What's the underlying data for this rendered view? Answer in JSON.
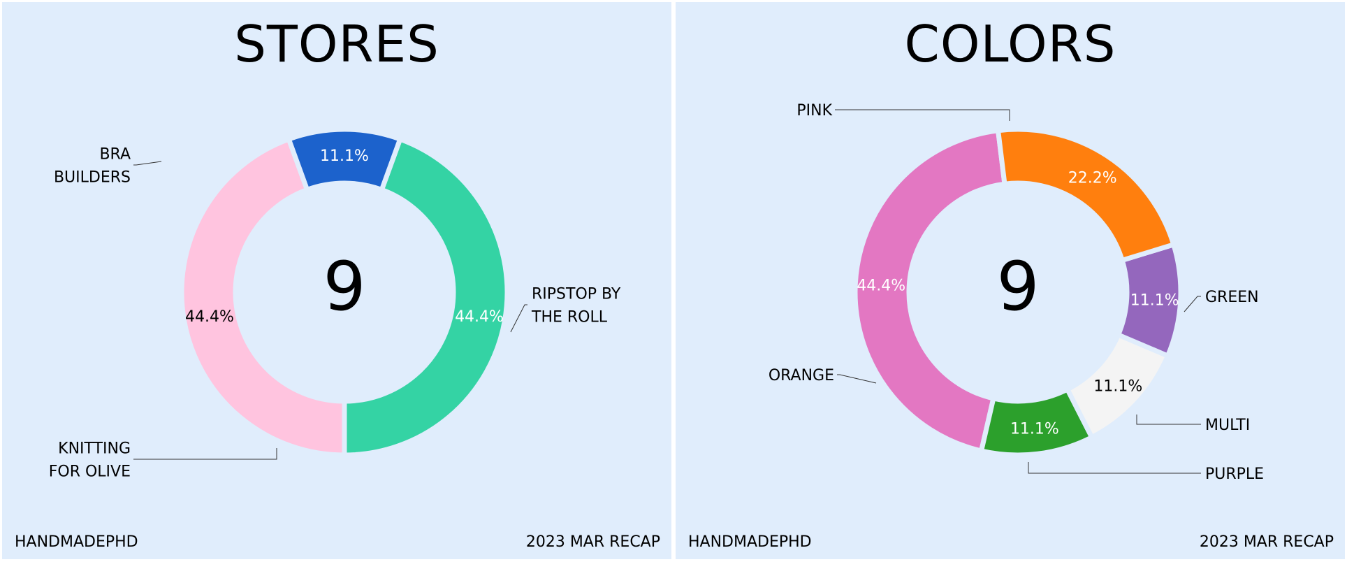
{
  "footer_left": "HANDMADEPHD",
  "footer_right": "2023 MAR RECAP",
  "chart_data": [
    {
      "type": "pie",
      "title": "STORES",
      "center_total": "9",
      "slices": [
        {
          "label": "BRA BUILDERS",
          "lines": [
            "BRA",
            "BUILDERS"
          ],
          "value": 4,
          "pct": "44.4%",
          "color": "#34d3a4",
          "pct_color": "#ffffff"
        },
        {
          "label": "RIPSTOP BY THE ROLL",
          "lines": [
            "RIPSTOP BY",
            "THE ROLL"
          ],
          "value": 4,
          "pct": "44.4%",
          "color": "#ffc4df",
          "pct_color": "#000000"
        },
        {
          "label": "KNITTING FOR OLIVE",
          "lines": [
            "KNITTING",
            "FOR OLIVE"
          ],
          "value": 1,
          "pct": "11.1%",
          "color": "#1c62cc",
          "pct_color": "#ffffff"
        }
      ]
    },
    {
      "type": "pie",
      "title": "COLORS",
      "center_total": "9",
      "slices": [
        {
          "label": "PINK",
          "lines": [
            "PINK"
          ],
          "value": 4,
          "pct": "44.4%",
          "color": "#e377c2",
          "pct_color": "#ffffff"
        },
        {
          "label": "GREEN",
          "lines": [
            "GREEN"
          ],
          "value": 1,
          "pct": "11.1%",
          "color": "#2ca02c",
          "pct_color": "#ffffff"
        },
        {
          "label": "MULTI",
          "lines": [
            "MULTI"
          ],
          "value": 1,
          "pct": "11.1%",
          "color": "#f4f4f4",
          "pct_color": "#000000"
        },
        {
          "label": "PURPLE",
          "lines": [
            "PURPLE"
          ],
          "value": 1,
          "pct": "11.1%",
          "color": "#9467bd",
          "pct_color": "#ffffff"
        },
        {
          "label": "ORANGE",
          "lines": [
            "ORANGE"
          ],
          "value": 2,
          "pct": "22.2%",
          "color": "#ff7f0e",
          "pct_color": "#ffffff"
        }
      ]
    }
  ]
}
